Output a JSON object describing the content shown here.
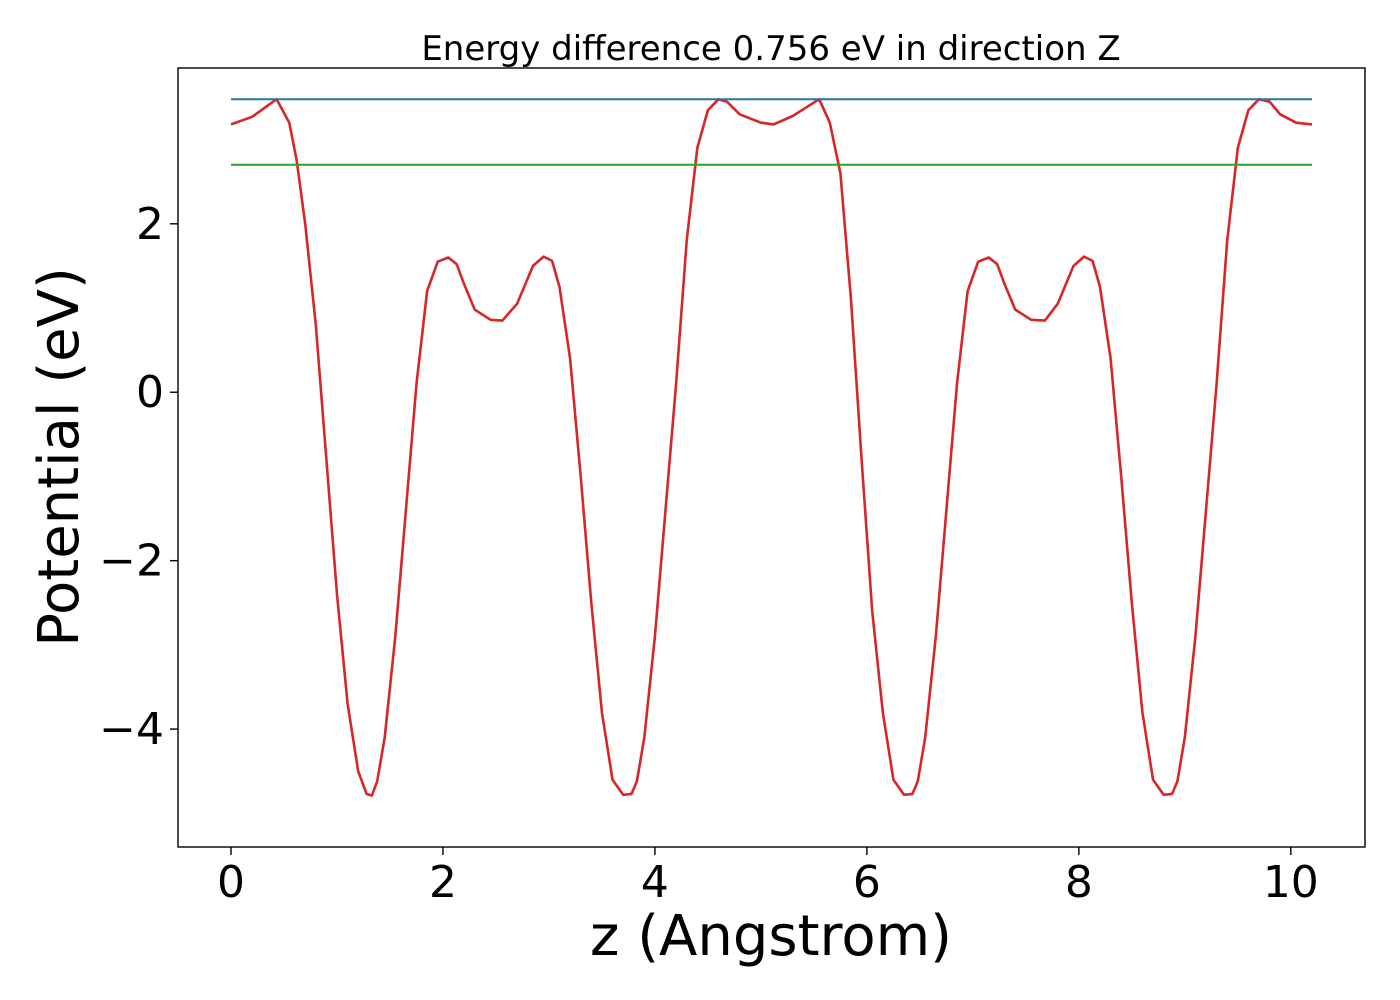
{
  "chart_data": {
    "type": "line",
    "title": "Energy difference 0.756 eV in direction Z",
    "xlabel": "z (Angstrom)",
    "ylabel": "Potential (eV)",
    "xlim": [
      -0.5,
      10.7
    ],
    "ylim": [
      -5.4,
      3.85
    ],
    "x_ticks": [
      0,
      2,
      4,
      6,
      8,
      10
    ],
    "x_tick_labels": [
      "0",
      "2",
      "4",
      "6",
      "8",
      "10"
    ],
    "y_ticks": [
      -4,
      -2,
      0,
      2
    ],
    "y_tick_labels": [
      "−4",
      "−2",
      "0",
      "2"
    ],
    "grid": false,
    "series": [
      {
        "color": "#d62728",
        "x": [
          0,
          0.2,
          0.43,
          0.55,
          0.62,
          0.7,
          0.8,
          0.9,
          1.0,
          1.1,
          1.2,
          1.28,
          1.33,
          1.38,
          1.45,
          1.55,
          1.65,
          1.75,
          1.85,
          1.95,
          2.05,
          2.13,
          2.2,
          2.3,
          2.45,
          2.56,
          2.7,
          2.85,
          2.95,
          3.03,
          3.1,
          3.2,
          3.3,
          3.4,
          3.5,
          3.6,
          3.7,
          3.78,
          3.83,
          3.9,
          4.0,
          4.1,
          4.2,
          4.3,
          4.4,
          4.5,
          4.6,
          4.68,
          4.8,
          5.0,
          5.12,
          5.3,
          5.55,
          5.65,
          5.75,
          5.85,
          5.95,
          6.05,
          6.15,
          6.25,
          6.35,
          6.43,
          6.48,
          6.55,
          6.65,
          6.75,
          6.85,
          6.95,
          7.05,
          7.15,
          7.23,
          7.3,
          7.4,
          7.55,
          7.68,
          7.8,
          7.95,
          8.05,
          8.13,
          8.2,
          8.3,
          8.4,
          8.5,
          8.6,
          8.7,
          8.8,
          8.88,
          8.93,
          9.0,
          9.1,
          9.2,
          9.3,
          9.4,
          9.5,
          9.6,
          9.7,
          9.8,
          9.9,
          10.05,
          10.2
        ],
        "y": [
          3.18,
          3.27,
          3.48,
          3.2,
          2.75,
          2.0,
          0.8,
          -0.8,
          -2.4,
          -3.7,
          -4.5,
          -4.77,
          -4.79,
          -4.62,
          -4.1,
          -2.9,
          -1.4,
          0.1,
          1.2,
          1.55,
          1.6,
          1.52,
          1.28,
          0.98,
          0.86,
          0.85,
          1.05,
          1.5,
          1.61,
          1.56,
          1.25,
          0.4,
          -1.0,
          -2.5,
          -3.8,
          -4.6,
          -4.78,
          -4.77,
          -4.62,
          -4.1,
          -2.9,
          -1.4,
          0.1,
          1.8,
          2.9,
          3.35,
          3.48,
          3.45,
          3.3,
          3.2,
          3.18,
          3.28,
          3.48,
          3.2,
          2.6,
          1.1,
          -0.8,
          -2.6,
          -3.8,
          -4.6,
          -4.78,
          -4.77,
          -4.62,
          -4.1,
          -2.9,
          -1.4,
          0.1,
          1.2,
          1.55,
          1.6,
          1.52,
          1.28,
          0.98,
          0.86,
          0.85,
          1.05,
          1.5,
          1.61,
          1.56,
          1.25,
          0.4,
          -1.0,
          -2.5,
          -3.8,
          -4.6,
          -4.78,
          -4.77,
          -4.62,
          -4.1,
          -2.9,
          -1.4,
          0.1,
          1.8,
          2.9,
          3.35,
          3.48,
          3.45,
          3.3,
          3.2,
          3.18
        ]
      },
      {
        "color": "#1f77b4",
        "x": [
          0,
          10.2
        ],
        "y": [
          3.48,
          3.48
        ]
      },
      {
        "color": "#2ca02c",
        "x": [
          0,
          10.2
        ],
        "y": [
          2.7,
          2.7
        ]
      }
    ]
  }
}
